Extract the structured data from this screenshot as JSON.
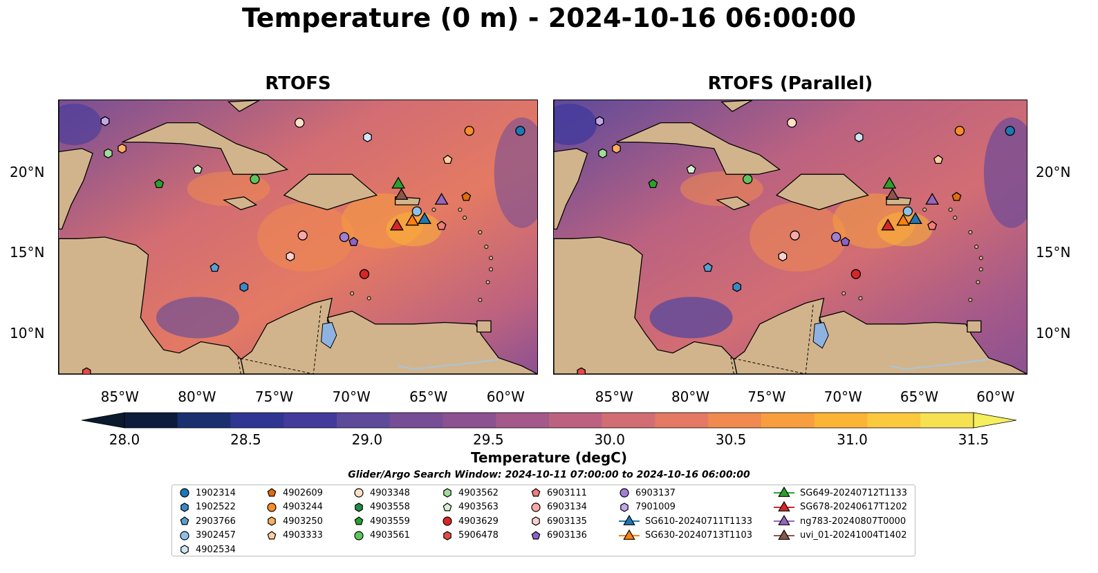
{
  "title": "Temperature (0 m) - 2024-10-16 06:00:00",
  "panels": [
    {
      "title": "RTOFS"
    },
    {
      "title": "RTOFS (Parallel)"
    }
  ],
  "lon_ticks": [
    "85°W",
    "80°W",
    "75°W",
    "70°W",
    "65°W",
    "60°W"
  ],
  "lon_values": [
    -85,
    -80,
    -75,
    -70,
    -65,
    -60
  ],
  "lat_ticks": [
    "20°N",
    "15°N",
    "10°N"
  ],
  "lat_values": [
    20,
    15,
    10
  ],
  "extent": {
    "lon_min": -89,
    "lon_max": -58,
    "lat_min": 7.5,
    "lat_max": 24.5
  },
  "colorbar": {
    "label": "Temperature (degC)",
    "ticks": [
      "28.0",
      "28.5",
      "29.0",
      "29.5",
      "30.0",
      "30.5",
      "31.0",
      "31.5"
    ],
    "min": 28.0,
    "max": 31.5,
    "extend": "both",
    "colors": [
      "#0d1b3d",
      "#1a2f6e",
      "#2e3592",
      "#433a9c",
      "#5d4a9b",
      "#774e95",
      "#8c5190",
      "#a4598a",
      "#bc6280",
      "#d26d73",
      "#e47a63",
      "#f08a4f",
      "#f89e3e",
      "#fbb435",
      "#fbc93e",
      "#f6e153"
    ],
    "under_color": "#0b1a2e",
    "over_color": "#f5ee5e"
  },
  "colors": {
    "land": "#d2b48c",
    "lake": "#8fb3e0",
    "river": "#a9c4d9"
  },
  "legend_title": "Glider/Argo Search Window: 2024-10-11 07:00:00 to 2024-10-16 06:00:00",
  "legend": [
    {
      "label": "1902314",
      "marker": "circle",
      "color": "#1f77b4"
    },
    {
      "label": "1902522",
      "marker": "hexagon",
      "color": "#3a89c4"
    },
    {
      "label": "2903766",
      "marker": "pentagon",
      "color": "#5a9fd4"
    },
    {
      "label": "3902457",
      "marker": "circle",
      "color": "#8cc2ea"
    },
    {
      "label": "4902534",
      "marker": "hexagon",
      "color": "#cfe6f5"
    },
    {
      "label": "4902609",
      "marker": "pentagon",
      "color": "#e06c0f"
    },
    {
      "label": "4903244",
      "marker": "circle",
      "color": "#f98d2a"
    },
    {
      "label": "4903250",
      "marker": "hexagon",
      "color": "#fdae63"
    },
    {
      "label": "4903333",
      "marker": "pentagon",
      "color": "#fdd0a2"
    },
    {
      "label": "4903348",
      "marker": "circle",
      "color": "#fde0c5"
    },
    {
      "label": "4903558",
      "marker": "hexagon",
      "color": "#238b45"
    },
    {
      "label": "4903559",
      "marker": "pentagon",
      "color": "#2ca02c"
    },
    {
      "label": "4903561",
      "marker": "circle",
      "color": "#5fc45f"
    },
    {
      "label": "4903562",
      "marker": "hexagon",
      "color": "#a1dc9c"
    },
    {
      "label": "4903563",
      "marker": "pentagon",
      "color": "#d5f2d0"
    },
    {
      "label": "4903629",
      "marker": "circle",
      "color": "#d62728"
    },
    {
      "label": "5906478",
      "marker": "hexagon",
      "color": "#e34a4a"
    },
    {
      "label": "6903111",
      "marker": "pentagon",
      "color": "#f07c7c"
    },
    {
      "label": "6903134",
      "marker": "circle",
      "color": "#f9a8a8"
    },
    {
      "label": "6903135",
      "marker": "hexagon",
      "color": "#fcd0d0"
    },
    {
      "label": "6903136",
      "marker": "pentagon",
      "color": "#8a63c6"
    },
    {
      "label": "6903137",
      "marker": "circle",
      "color": "#a07fd4"
    },
    {
      "label": "7901009",
      "marker": "hexagon",
      "color": "#c2a8e8"
    },
    {
      "label": "SG610-20240711T1133",
      "marker": "triangle",
      "color": "#1f77b4"
    },
    {
      "label": "SG630-20240713T1103",
      "marker": "triangle",
      "color": "#ff7f0e"
    },
    {
      "label": "SG649-20240712T1133",
      "marker": "triangle",
      "color": "#2ca02c"
    },
    {
      "label": "SG678-20240617T1202",
      "marker": "triangle",
      "color": "#d62728"
    },
    {
      "label": "ng783-20240807T0000",
      "marker": "triangle",
      "color": "#9467bd"
    },
    {
      "label": "uvi_01-20241004T1402",
      "marker": "triangle",
      "color": "#8c564b"
    }
  ],
  "points": [
    {
      "id": "1902314",
      "lon": -59.1,
      "lat": 22.6
    },
    {
      "id": "1902522",
      "lon": -77.0,
      "lat": 12.9
    },
    {
      "id": "2903766",
      "lon": -78.9,
      "lat": 14.1
    },
    {
      "id": "3902457",
      "lon": -65.8,
      "lat": 17.6
    },
    {
      "id": "4902534",
      "lon": -69.0,
      "lat": 22.2
    },
    {
      "id": "4902609",
      "lon": -62.6,
      "lat": 18.5
    },
    {
      "id": "4903244",
      "lon": -62.4,
      "lat": 22.6
    },
    {
      "id": "4903250",
      "lon": -84.9,
      "lat": 21.5
    },
    {
      "id": "4903333",
      "lon": -63.8,
      "lat": 20.8
    },
    {
      "id": "4903348",
      "lon": -73.4,
      "lat": 23.1
    },
    {
      "id": "4903558",
      "lon": -86.0,
      "lat": 23.2
    },
    {
      "id": "4903559",
      "lon": -82.5,
      "lat": 19.3
    },
    {
      "id": "4903561",
      "lon": -76.3,
      "lat": 19.6
    },
    {
      "id": "4903562",
      "lon": -85.8,
      "lat": 21.2
    },
    {
      "id": "4903563",
      "lon": -80.0,
      "lat": 20.2
    },
    {
      "id": "4903629",
      "lon": -69.2,
      "lat": 13.7
    },
    {
      "id": "5906478",
      "lon": -87.2,
      "lat": 7.6
    },
    {
      "id": "6903111",
      "lon": -64.2,
      "lat": 16.7
    },
    {
      "id": "6903134",
      "lon": -73.2,
      "lat": 16.1
    },
    {
      "id": "6903135",
      "lon": -74.0,
      "lat": 14.8
    },
    {
      "id": "6903136",
      "lon": -69.9,
      "lat": 15.7
    },
    {
      "id": "6903137",
      "lon": -70.5,
      "lat": 16.0
    },
    {
      "id": "7901009",
      "lon": -86.0,
      "lat": 23.2
    },
    {
      "id": "SG610-20240711T1133",
      "lon": -65.3,
      "lat": 17.1
    },
    {
      "id": "SG630-20240713T1103",
      "lon": -66.1,
      "lat": 17.0
    },
    {
      "id": "SG649-20240712T1133",
      "lon": -67.0,
      "lat": 19.3
    },
    {
      "id": "SG678-20240617T1202",
      "lon": -67.1,
      "lat": 16.7
    },
    {
      "id": "ng783-20240807T0000",
      "lon": -64.2,
      "lat": 18.3
    },
    {
      "id": "uvi_01-20241004T1402",
      "lon": -66.8,
      "lat": 18.6
    }
  ]
}
